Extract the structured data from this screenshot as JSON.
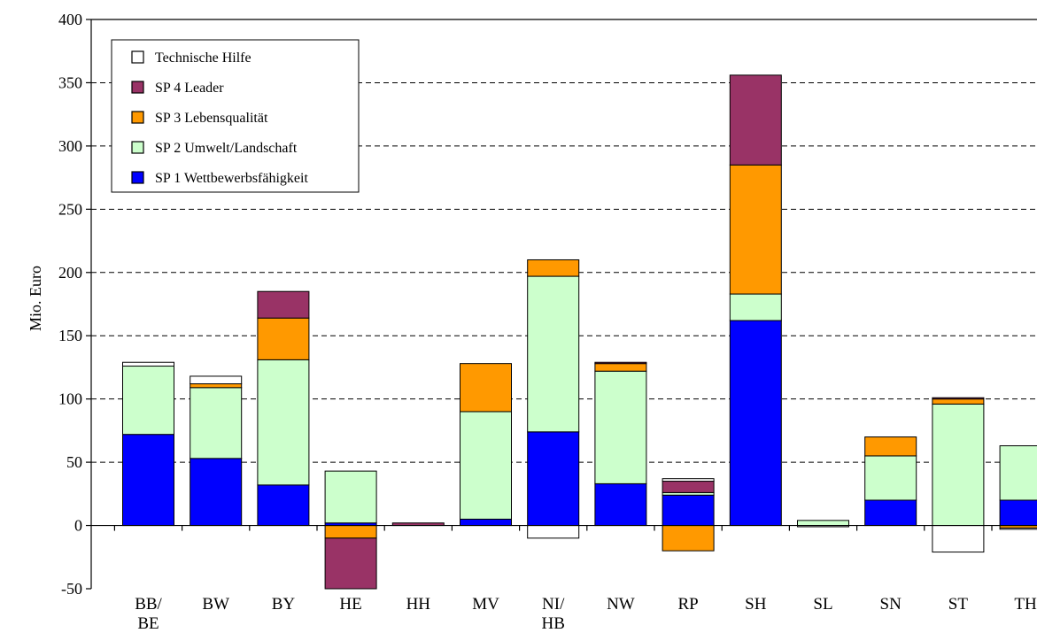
{
  "chart_data": {
    "type": "bar",
    "stacked": true,
    "title": "",
    "xlabel": "",
    "ylabel": "Mio. Euro",
    "ylim": [
      -50,
      400
    ],
    "yticks": [
      -50,
      0,
      50,
      100,
      150,
      200,
      250,
      300,
      350,
      400
    ],
    "grid": true,
    "legend_position": "top-left",
    "categories": [
      "BB/\nBE",
      "BW",
      "BY",
      "HE",
      "HH",
      "MV",
      "NI/\nHB",
      "NW",
      "RP",
      "SH",
      "SL",
      "SN",
      "ST",
      "TH"
    ],
    "series": [
      {
        "name": "SP 1 Wettbewerbsfähigkeit",
        "color": "#0000FF",
        "values": [
          72,
          53,
          32,
          2,
          0,
          5,
          74,
          33,
          24,
          162,
          0,
          20,
          0,
          20
        ]
      },
      {
        "name": "SP 2 Umwelt/Landschaft",
        "color": "#CCFFCC",
        "values": [
          54,
          56,
          99,
          41,
          0,
          85,
          123,
          89,
          2,
          21,
          4,
          35,
          96,
          43
        ]
      },
      {
        "name": "SP 3 Lebensqualität",
        "color": "#FF9900",
        "values": [
          0,
          3,
          33,
          -10,
          0,
          38,
          13,
          6,
          -20,
          102,
          0,
          15,
          4,
          -2
        ]
      },
      {
        "name": "SP 4 Leader",
        "color": "#993366",
        "values": [
          0,
          0,
          21,
          -40,
          2,
          0,
          0,
          1,
          9,
          71,
          0,
          0,
          1,
          0
        ]
      },
      {
        "name": "Technische Hilfe",
        "color": "#FFFFFF",
        "values": [
          3,
          6,
          0,
          0,
          0,
          0,
          -10,
          0,
          2,
          0,
          -1,
          0,
          -21,
          -1
        ]
      }
    ]
  }
}
